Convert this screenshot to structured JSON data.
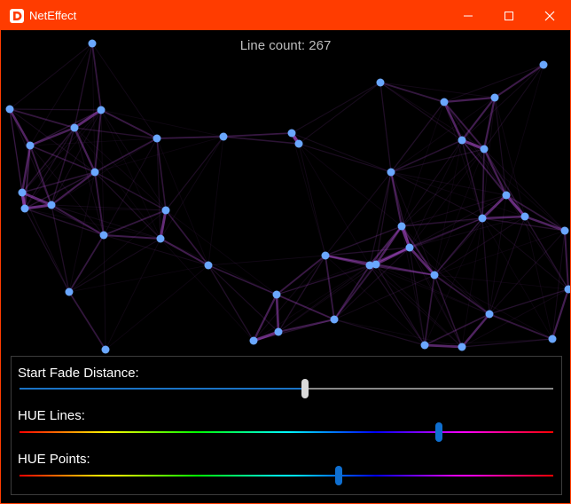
{
  "window": {
    "title": "NetEffect",
    "accent": "#ff3c00"
  },
  "status": {
    "line_count": "Line count: 267"
  },
  "controls": [
    {
      "label": "Start Fade Distance:",
      "value_fraction": 0.535,
      "thumb_color": "#d9d9d9",
      "track": "fade"
    },
    {
      "label": "HUE Lines:",
      "value_fraction": 0.786,
      "thumb_color": "#0f6fd0",
      "track": "hue"
    },
    {
      "label": "HUE Points:",
      "value_fraction": 0.598,
      "thumb_color": "#0f6fd0",
      "track": "hue"
    }
  ],
  "colors": {
    "point": "#6aa7ff",
    "line": "#b14ed6"
  }
}
